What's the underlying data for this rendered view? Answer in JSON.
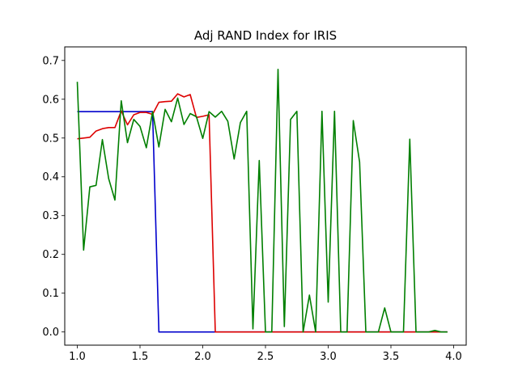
{
  "chart_data": {
    "type": "line",
    "title": "Adj RAND Index for IRIS",
    "xlabel": "",
    "ylabel": "",
    "xlim": [
      0.9,
      4.1
    ],
    "ylim": [
      -0.034,
      0.735
    ],
    "grid": false,
    "legend": "none",
    "x_ticks": [
      "1.0",
      "1.5",
      "2.0",
      "2.5",
      "3.0",
      "3.5",
      "4.0"
    ],
    "y_ticks": [
      "0.0",
      "0.1",
      "0.2",
      "0.3",
      "0.4",
      "0.5",
      "0.6",
      "0.7"
    ],
    "x": [
      1.0,
      1.05,
      1.1,
      1.15,
      1.2,
      1.25,
      1.3,
      1.35,
      1.4,
      1.45,
      1.5,
      1.55,
      1.6,
      1.65,
      1.7,
      1.75,
      1.8,
      1.85,
      1.9,
      1.95,
      2.0,
      2.05,
      2.1,
      2.15,
      2.2,
      2.25,
      2.3,
      2.35,
      2.4,
      2.45,
      2.5,
      2.55,
      2.6,
      2.65,
      2.7,
      2.75,
      2.8,
      2.85,
      2.9,
      2.95,
      3.0,
      3.05,
      3.1,
      3.15,
      3.2,
      3.25,
      3.3,
      3.35,
      3.4,
      3.45,
      3.5,
      3.55,
      3.6,
      3.65,
      3.7,
      3.75,
      3.8,
      3.85,
      3.9,
      3.95
    ],
    "series": [
      {
        "color": "#0000cc",
        "values": [
          0.568,
          0.568,
          0.568,
          0.568,
          0.568,
          0.568,
          0.568,
          0.568,
          0.568,
          0.568,
          0.568,
          0.568,
          0.568,
          0.0,
          0.0,
          0.0,
          0.0,
          0.0,
          0.0,
          0.0,
          0.0,
          0.0,
          0.0,
          0.0,
          0.0,
          0.0,
          0.0,
          0.0,
          0.0,
          0.0,
          0.0,
          0.0,
          0.0,
          0.0,
          0.0,
          0.0,
          0.0,
          0.0,
          0.0,
          0.0,
          0.0,
          0.0,
          0.0,
          0.0,
          0.0,
          0.0,
          0.0,
          0.0,
          0.0,
          0.0,
          0.0,
          0.0,
          0.0,
          0.0,
          0.0,
          0.0,
          0.0,
          0.0,
          0.0,
          0.0
        ]
      },
      {
        "color": "#dd0000",
        "values": [
          0.498,
          0.5,
          0.502,
          0.518,
          0.524,
          0.527,
          0.527,
          0.57,
          0.534,
          0.56,
          0.566,
          0.566,
          0.561,
          0.592,
          0.594,
          0.595,
          0.614,
          0.606,
          0.612,
          0.553,
          0.556,
          0.56,
          0.0,
          0.0,
          0.0,
          0.0,
          0.0,
          0.0,
          0.0,
          0.0,
          0.0,
          0.0,
          0.0,
          0.0,
          0.0,
          0.0,
          0.0,
          0.0,
          0.0,
          0.0,
          0.0,
          0.0,
          0.0,
          0.0,
          0.0,
          0.0,
          0.0,
          0.0,
          0.0,
          0.0,
          0.0,
          0.0,
          0.0,
          0.0,
          0.0,
          0.0,
          0.0,
          0.0,
          0.0,
          0.0
        ]
      },
      {
        "color": "#007f00",
        "values": [
          0.645,
          0.211,
          0.374,
          0.378,
          0.496,
          0.395,
          0.34,
          0.596,
          0.488,
          0.548,
          0.53,
          0.475,
          0.568,
          0.477,
          0.574,
          0.542,
          0.603,
          0.535,
          0.563,
          0.555,
          0.499,
          0.568,
          0.554,
          0.569,
          0.543,
          0.446,
          0.54,
          0.569,
          0.008,
          0.442,
          0.0,
          0.0,
          0.677,
          0.014,
          0.548,
          0.569,
          0.0,
          0.095,
          0.0,
          0.569,
          0.077,
          0.569,
          0.0,
          0.0,
          0.545,
          0.438,
          0.0,
          0.0,
          0.0,
          0.062,
          0.0,
          0.0,
          0.0,
          0.497,
          0.0,
          0.0,
          0.0,
          0.004,
          0.0,
          0.0
        ]
      }
    ]
  }
}
